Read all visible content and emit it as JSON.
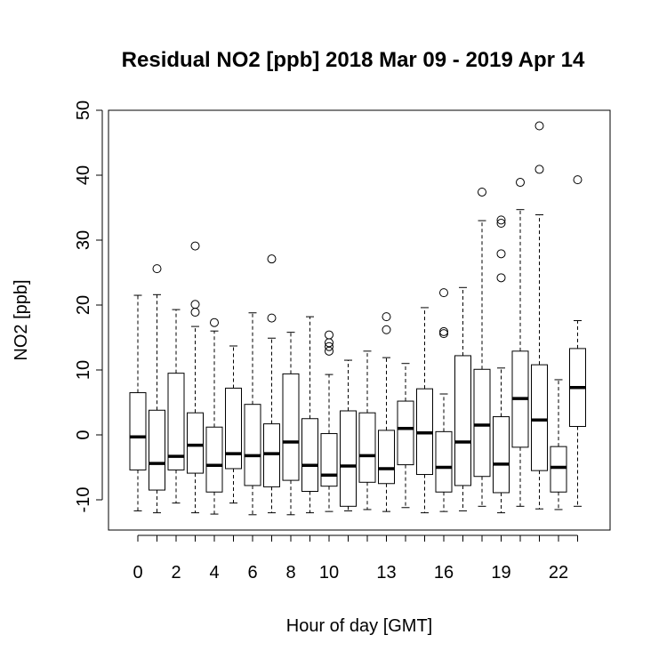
{
  "chart_data": {
    "type": "boxplot",
    "title": "Residual NO2 [ppb] 2018 Mar 09 - 2019 Apr 14",
    "xlabel": "Hour of day [GMT]",
    "ylabel": "NO2 [ppb]",
    "ylim": [
      -15,
      50
    ],
    "yticks": [
      -10,
      0,
      10,
      20,
      30,
      40,
      50
    ],
    "x_tick_labels_shown": [
      "0",
      "2",
      "4",
      "6",
      "8",
      "10",
      "13",
      "16",
      "19",
      "22"
    ],
    "categories": [
      "0",
      "1",
      "2",
      "3",
      "4",
      "5",
      "6",
      "7",
      "8",
      "9",
      "10",
      "11",
      "12",
      "13",
      "14",
      "15",
      "16",
      "17",
      "18",
      "19",
      "20",
      "21",
      "22",
      "23"
    ],
    "grid": false,
    "boxes": [
      {
        "hour": 0,
        "whisker_low": -11.7,
        "q1": -5.4,
        "median": -0.3,
        "q3": 6.5,
        "whisker_high": 21.5,
        "outliers": []
      },
      {
        "hour": 1,
        "whisker_low": -12.0,
        "q1": -8.5,
        "median": -4.4,
        "q3": 3.8,
        "whisker_high": 21.6,
        "outliers": [
          25.6
        ]
      },
      {
        "hour": 2,
        "whisker_low": -10.5,
        "q1": -5.4,
        "median": -3.3,
        "q3": 9.5,
        "whisker_high": 19.3,
        "outliers": []
      },
      {
        "hour": 3,
        "whisker_low": -12.0,
        "q1": -5.9,
        "median": -1.6,
        "q3": 3.4,
        "whisker_high": 16.7,
        "outliers": [
          18.9,
          20.1,
          29.1
        ]
      },
      {
        "hour": 4,
        "whisker_low": -12.2,
        "q1": -8.8,
        "median": -4.7,
        "q3": 1.2,
        "whisker_high": 16.0,
        "outliers": [
          17.3
        ]
      },
      {
        "hour": 5,
        "whisker_low": -10.5,
        "q1": -5.2,
        "median": -2.9,
        "q3": 7.2,
        "whisker_high": 13.7,
        "outliers": []
      },
      {
        "hour": 6,
        "whisker_low": -12.3,
        "q1": -7.8,
        "median": -3.2,
        "q3": 4.7,
        "whisker_high": 18.8,
        "outliers": []
      },
      {
        "hour": 7,
        "whisker_low": -12.0,
        "q1": -8.0,
        "median": -2.9,
        "q3": 1.7,
        "whisker_high": 14.9,
        "outliers": [
          18.0,
          27.1
        ]
      },
      {
        "hour": 8,
        "whisker_low": -12.3,
        "q1": -7.0,
        "median": -1.1,
        "q3": 9.4,
        "whisker_high": 15.8,
        "outliers": []
      },
      {
        "hour": 9,
        "whisker_low": -12.0,
        "q1": -8.7,
        "median": -4.7,
        "q3": 2.5,
        "whisker_high": 18.2,
        "outliers": []
      },
      {
        "hour": 10,
        "whisker_low": -11.8,
        "q1": -7.9,
        "median": -6.2,
        "q3": 0.2,
        "whisker_high": 9.3,
        "outliers": [
          12.9,
          13.6,
          14.2,
          15.4
        ]
      },
      {
        "hour": 11,
        "whisker_low": -11.7,
        "q1": -11.0,
        "median": -4.8,
        "q3": 3.7,
        "whisker_high": 11.5,
        "outliers": []
      },
      {
        "hour": 12,
        "whisker_low": -11.5,
        "q1": -7.3,
        "median": -3.2,
        "q3": 3.4,
        "whisker_high": 12.9,
        "outliers": []
      },
      {
        "hour": 13,
        "whisker_low": -11.8,
        "q1": -7.5,
        "median": -5.2,
        "q3": 0.7,
        "whisker_high": 11.9,
        "outliers": [
          16.2,
          18.2
        ]
      },
      {
        "hour": 14,
        "whisker_low": -11.2,
        "q1": -4.6,
        "median": 1.0,
        "q3": 5.2,
        "whisker_high": 11.0,
        "outliers": []
      },
      {
        "hour": 15,
        "whisker_low": -12.0,
        "q1": -6.1,
        "median": 0.3,
        "q3": 7.1,
        "whisker_high": 19.6,
        "outliers": []
      },
      {
        "hour": 16,
        "whisker_low": -11.8,
        "q1": -8.8,
        "median": -5.0,
        "q3": 0.5,
        "whisker_high": 6.3,
        "outliers": [
          15.6,
          15.9,
          21.9
        ]
      },
      {
        "hour": 17,
        "whisker_low": -11.7,
        "q1": -7.8,
        "median": -1.1,
        "q3": 12.2,
        "whisker_high": 22.7,
        "outliers": []
      },
      {
        "hour": 18,
        "whisker_low": -11.0,
        "q1": -6.4,
        "median": 1.5,
        "q3": 10.1,
        "whisker_high": 33.0,
        "outliers": [
          37.4
        ]
      },
      {
        "hour": 19,
        "whisker_low": -12.0,
        "q1": -8.9,
        "median": -4.5,
        "q3": 2.8,
        "whisker_high": 10.3,
        "outliers": [
          24.2,
          27.9,
          32.6,
          33.1
        ]
      },
      {
        "hour": 20,
        "whisker_low": -11.0,
        "q1": -1.9,
        "median": 5.6,
        "q3": 12.9,
        "whisker_high": 34.7,
        "outliers": [
          38.9
        ]
      },
      {
        "hour": 21,
        "whisker_low": -11.4,
        "q1": -5.5,
        "median": 2.3,
        "q3": 10.8,
        "whisker_high": 33.9,
        "outliers": [
          40.9,
          47.6
        ]
      },
      {
        "hour": 22,
        "whisker_low": -11.5,
        "q1": -8.8,
        "median": -5.0,
        "q3": -1.8,
        "whisker_high": 8.5,
        "outliers": []
      },
      {
        "hour": 23,
        "whisker_low": -11.0,
        "q1": 1.3,
        "median": 7.3,
        "q3": 13.3,
        "whisker_high": 17.6,
        "outliers": [
          39.3
        ]
      }
    ]
  }
}
